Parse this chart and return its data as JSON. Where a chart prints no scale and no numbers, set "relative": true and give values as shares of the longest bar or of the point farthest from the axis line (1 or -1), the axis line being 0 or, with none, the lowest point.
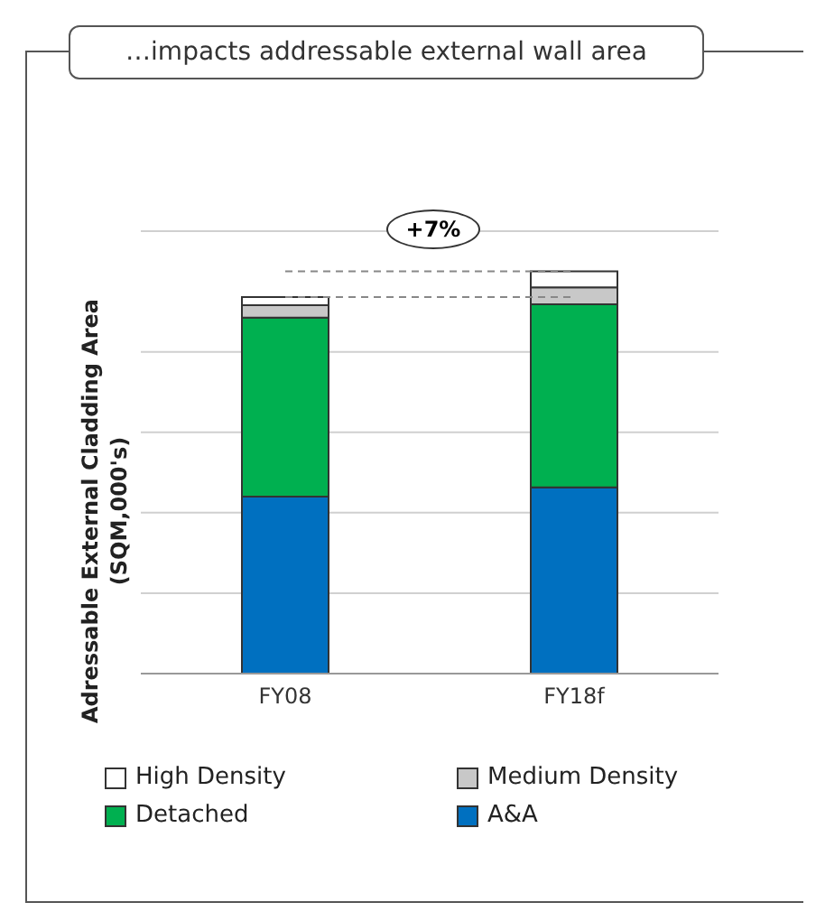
{
  "chart_data": {
    "type": "bar",
    "title": "…impacts addressable external wall area",
    "ylabel": "Adressable External Cladding Area (SQM,000's)",
    "categories": [
      "FY08",
      "FY18f"
    ],
    "stacked": true,
    "relative": true,
    "grid": "y",
    "legend": "bottom",
    "annotations": [
      "+7%"
    ],
    "ref_lines": [
      {
        "axis": "y",
        "value": 0.936,
        "line_style": "dashed",
        "color": "#888888"
      },
      {
        "axis": "y",
        "value": 1,
        "line_style": "dashed",
        "color": "#888888"
      }
    ],
    "series": [
      {
        "name": "A&A",
        "color": "#0070c0",
        "values": [
          0.44,
          0.463
        ]
      },
      {
        "name": "Detached",
        "color": "#00b050",
        "values": [
          0.445,
          0.455
        ]
      },
      {
        "name": "Medium Density",
        "color": "#c8c8c8",
        "values": [
          0.031,
          0.042
        ]
      },
      {
        "name": "High Density",
        "color": "#ffffff",
        "values": [
          0.02,
          0.04
        ]
      }
    ]
  }
}
